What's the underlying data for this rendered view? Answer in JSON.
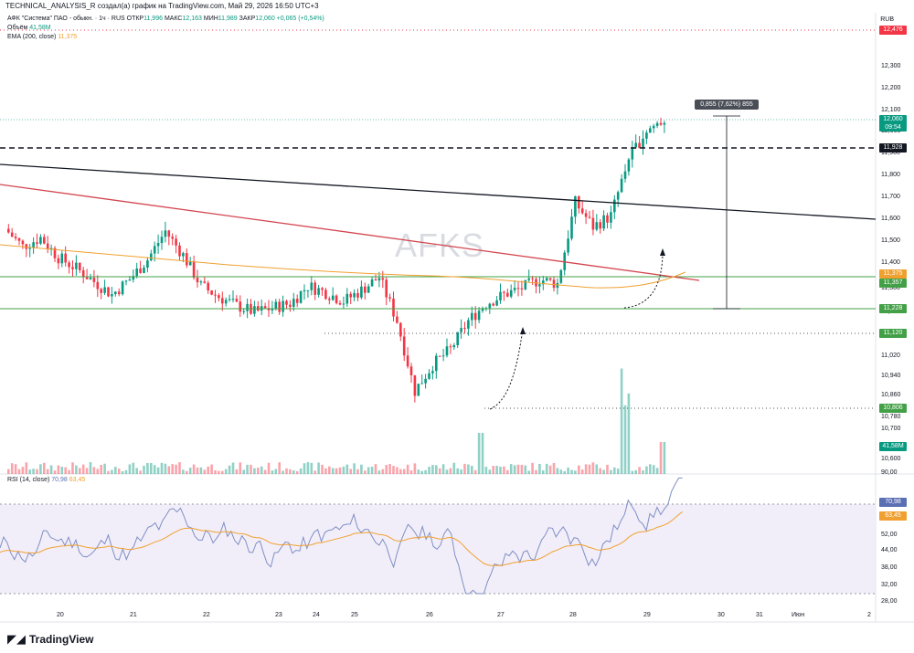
{
  "header": {
    "title_line": "TECHNICAL_ANALYSIS_R создал(а) график на TradingView.com, Май 29, 2026 16:50 UTC+3",
    "symbol_line": "АФК \"Система\" ПАО - обыкн. · 1ч · RUS",
    "ohlc": {
      "open_label": "ОТКР",
      "open": "11,996",
      "high_label": "МАКС",
      "high": "12,163",
      "low_label": "МИН",
      "low": "11,989",
      "close_label": "ЗАКР",
      "close": "12,060",
      "change": "+0,065 (+0,54%)"
    },
    "volume_label": "Объём",
    "volume_value": "41,58M",
    "ema_label": "EMA (200, close)",
    "ema_value": "11,375",
    "currency": "RUB"
  },
  "watermark": "AFKS",
  "measure": "0,855 (7,62%) 855",
  "price_axis": {
    "ticks": [
      "12,300",
      "12,200",
      "12,100",
      "12,000",
      "11,900",
      "11,800",
      "11,700",
      "11,600",
      "11,500",
      "11,400",
      "11,300",
      "11,200",
      "11,100",
      "11,020",
      "10,940",
      "10,860",
      "10,780",
      "10,700",
      "10,600"
    ],
    "labels": {
      "top": "12,476",
      "current": "12,060",
      "countdown": "09:54",
      "level1": "11,928",
      "ema": "11,375",
      "green1": "11,357",
      "green2": "11,228",
      "dotted1": "11,120",
      "dotted2": "10,806",
      "volume": "41,58M"
    }
  },
  "rsi": {
    "label": "RSI (14, close)",
    "rsi_value": "70,98",
    "ma_value": "63,45",
    "ticks": [
      "90,00",
      "76,00",
      "60,00",
      "52,00",
      "44,00",
      "38,00",
      "32,00",
      "28,00"
    ]
  },
  "time_axis": [
    "20",
    "21",
    "22",
    "23",
    "24",
    "25",
    "26",
    "27",
    "28",
    "29",
    "30",
    "31",
    "Июн",
    "2"
  ],
  "footer": {
    "brand": "TradingView"
  },
  "colors": {
    "up": "#089981",
    "down": "#f23645",
    "ema": "#f0a030",
    "rsi": "#7e8fc4",
    "rsi_bg": "#ede7f6",
    "level": "#43a047"
  },
  "chart_data": {
    "type": "candlestick",
    "interval": "1h",
    "approx_close_path": [
      11.56,
      11.48,
      11.52,
      11.43,
      11.38,
      11.32,
      11.26,
      11.33,
      11.42,
      11.55,
      11.44,
      11.3,
      11.25,
      11.21,
      11.18,
      11.2,
      11.22,
      11.3,
      11.27,
      11.23,
      11.28,
      11.34,
      11.14,
      10.82,
      10.94,
      11.01,
      11.14,
      11.22,
      11.26,
      11.29,
      11.33,
      11.31,
      11.68,
      11.57,
      11.62,
      11.88,
      12.01,
      12.06
    ],
    "ema200": 11.375,
    "volume_last": "41,58M",
    "rsi_last": 70.98,
    "rsi_ma_last": 63.45
  }
}
